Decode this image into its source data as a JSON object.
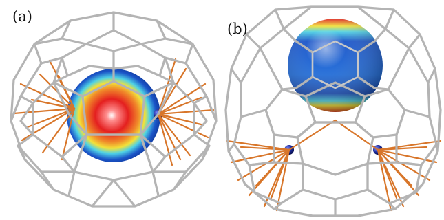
{
  "panels": [
    {
      "label": "(a)"
    },
    {
      "label": "(b)"
    }
  ],
  "colors": {
    "cage_bond": "#b4b4b4",
    "cage_highlight": "#ececec",
    "interaction_line": "#d8762a",
    "metal_atom": "#1a2a9a",
    "surface_outer": "#1b55c8",
    "surface_mid": "#f2e23a",
    "surface_inner": "#e41f1f"
  }
}
